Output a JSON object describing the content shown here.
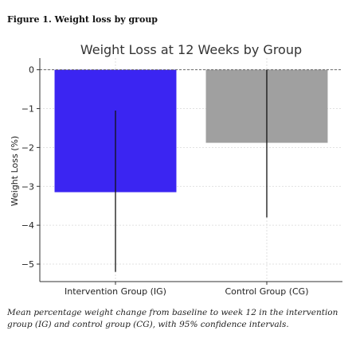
{
  "figure_label": "Figure 1. Weight loss by group",
  "caption": "Mean percentage weight change from baseline to week 12 in the intervention group (IG) and control group (CG), with 95% confidence intervals.",
  "chart_data": {
    "type": "bar",
    "title": "Weight Loss at 12 Weeks by Group",
    "xlabel": "",
    "ylabel": "Weight Loss (%)",
    "categories": [
      "Intervention Group (IG)",
      "Control Group (CG)"
    ],
    "values": [
      -3.15,
      -1.88
    ],
    "ci_low": [
      -5.2,
      -3.8
    ],
    "ci_high": [
      -1.05,
      0.0
    ],
    "colors": [
      "#3b25f2",
      "#a0a0a0"
    ],
    "ylim": [
      -5.45,
      0.3
    ],
    "yticks": [
      0,
      -1,
      -2,
      -3,
      -4,
      -5
    ],
    "ytick_labels": [
      "0",
      "−1",
      "−2",
      "−3",
      "−4",
      "−5"
    ],
    "reference_line": 0,
    "grid": true
  }
}
